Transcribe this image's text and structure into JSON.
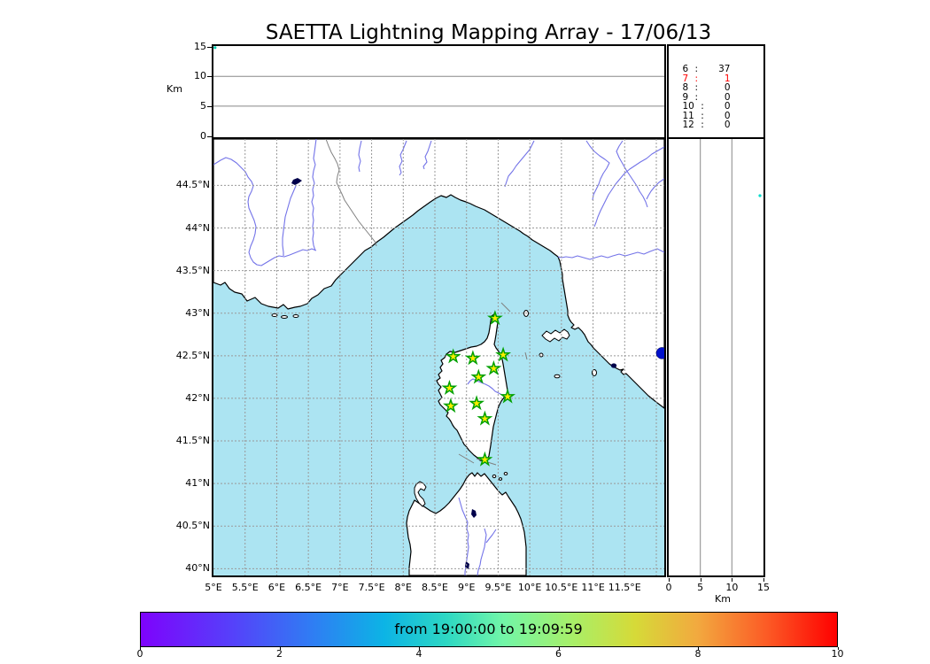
{
  "title": "SAETTA Lightning Mapping Array - 17/06/13",
  "colors": {
    "sea": "#ace4f2",
    "land": "#ffffff",
    "coastline": "#000000",
    "river": "#7373e8",
    "grid": "#999999",
    "station_fill": "#ffee00",
    "station_edge": "#00a000",
    "flash_dot": "#0011cc",
    "highlight_row": "#ff0000",
    "colorbar_start": "#7e03fc",
    "colorbar_end": "#fe0000"
  },
  "top_panel": {
    "ylabel": "Km",
    "yticks": [
      "0",
      "5",
      "10",
      "15"
    ]
  },
  "right_panel": {
    "xlabel": "Km",
    "xticks": [
      "0",
      "5",
      "10",
      "15"
    ]
  },
  "stats": {
    "rows": [
      {
        "n": "6",
        "v": "37",
        "red": false
      },
      {
        "n": "7",
        "v": "1",
        "red": true
      },
      {
        "n": "8",
        "v": "0",
        "red": false
      },
      {
        "n": "9",
        "v": "0",
        "red": false
      },
      {
        "n": "10",
        "v": "0",
        "red": false
      },
      {
        "n": "11",
        "v": "0",
        "red": false
      },
      {
        "n": "12",
        "v": "0",
        "red": false
      }
    ]
  },
  "map": {
    "lat_ticks": [
      {
        "v": 44.5,
        "label": "44.5°N"
      },
      {
        "v": 44.0,
        "label": "44°N"
      },
      {
        "v": 43.5,
        "label": "43.5°N"
      },
      {
        "v": 43.0,
        "label": "43°N"
      },
      {
        "v": 42.5,
        "label": "42.5°N"
      },
      {
        "v": 42.0,
        "label": "42°N"
      },
      {
        "v": 41.5,
        "label": "41.5°N"
      },
      {
        "v": 41.0,
        "label": "41°N"
      },
      {
        "v": 40.5,
        "label": "40.5°N"
      },
      {
        "v": 40.0,
        "label": "40°N"
      }
    ],
    "lon_ticks": [
      {
        "v": 5.0,
        "label": "5°E"
      },
      {
        "v": 5.5,
        "label": "5.5°E"
      },
      {
        "v": 6.0,
        "label": "6°E"
      },
      {
        "v": 6.5,
        "label": "6.5°E"
      },
      {
        "v": 7.0,
        "label": "7°E"
      },
      {
        "v": 7.5,
        "label": "7.5°E"
      },
      {
        "v": 8.0,
        "label": "8°E"
      },
      {
        "v": 8.5,
        "label": "8.5°E"
      },
      {
        "v": 9.0,
        "label": "9°E"
      },
      {
        "v": 9.5,
        "label": "9.5°E"
      },
      {
        "v": 10.0,
        "label": "10°E"
      },
      {
        "v": 10.5,
        "label": "10.5°E"
      },
      {
        "v": 11.0,
        "label": "11°E"
      },
      {
        "v": 11.5,
        "label": "11.5°E"
      }
    ]
  },
  "colorbar": {
    "label": "from 19:00:00 to 19:09:59",
    "ticks": [
      {
        "v": 0,
        "label": "0"
      },
      {
        "v": 2,
        "label": "2"
      },
      {
        "v": 4,
        "label": "4"
      },
      {
        "v": 6,
        "label": "6"
      },
      {
        "v": 8,
        "label": "8"
      },
      {
        "v": 10,
        "label": "10"
      }
    ],
    "range": [
      0,
      10
    ]
  },
  "chart_data": {
    "type": "scatter",
    "title": "SAETTA Lightning Mapping Array - 17/06/13",
    "layout": "lma-composite: altitude-vs-longitude (top), map (center), altitude-vs-latitude (right), time colorbar (bottom)",
    "map_extent": {
      "lon": [
        5.0,
        12.13
      ],
      "lat": [
        39.92,
        45.05
      ]
    },
    "altitude_axis_km": {
      "min": 0,
      "max": 15,
      "ticks": [
        0,
        5,
        10,
        15
      ],
      "label": "Km"
    },
    "stations": [
      {
        "lon": 9.45,
        "lat": 42.94
      },
      {
        "lon": 8.79,
        "lat": 42.49
      },
      {
        "lon": 9.1,
        "lat": 42.47
      },
      {
        "lon": 9.58,
        "lat": 42.51
      },
      {
        "lon": 9.43,
        "lat": 42.35
      },
      {
        "lon": 9.19,
        "lat": 42.25
      },
      {
        "lon": 8.73,
        "lat": 42.12
      },
      {
        "lon": 9.65,
        "lat": 42.02
      },
      {
        "lon": 8.75,
        "lat": 41.91
      },
      {
        "lon": 9.16,
        "lat": 41.94
      },
      {
        "lon": 9.29,
        "lat": 41.76
      },
      {
        "lon": 9.29,
        "lat": 41.28
      }
    ],
    "flash_sources": [
      {
        "lon": 12.09,
        "lat": 42.53,
        "color": "#0011cc"
      }
    ],
    "station_detection_counts": {
      "6": 37,
      "7": 1,
      "8": 0,
      "9": 0,
      "10": 0,
      "11": 0,
      "12": 0
    },
    "colorbar": {
      "label": "from 19:00:00 to 19:09:59",
      "range_minutes": [
        0,
        10
      ],
      "ticks": [
        0,
        2,
        4,
        6,
        8,
        10
      ],
      "colormap": "rainbow"
    }
  }
}
